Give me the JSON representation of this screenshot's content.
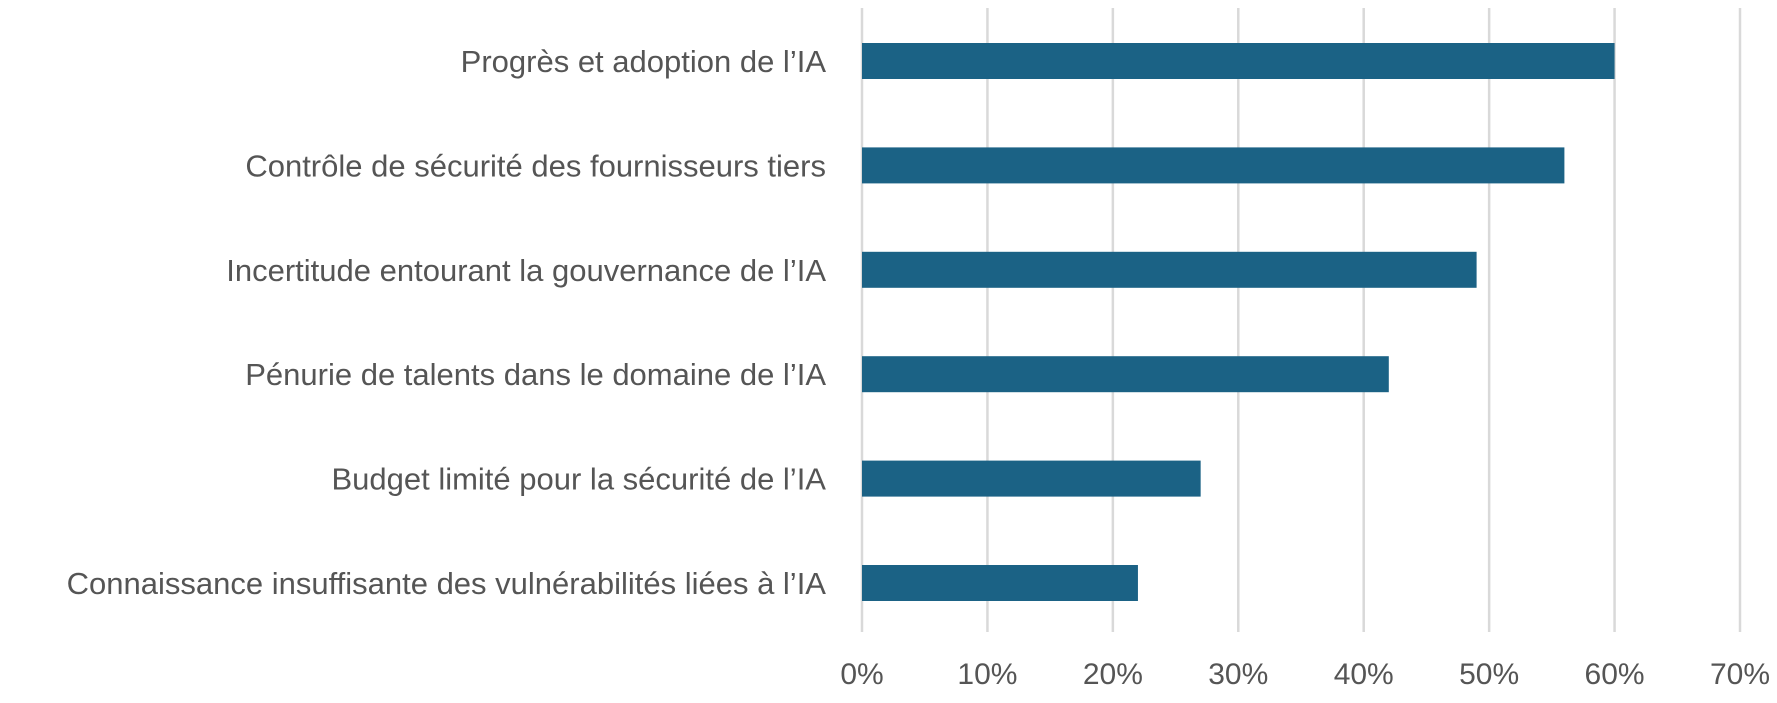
{
  "chart_data": {
    "type": "bar",
    "orientation": "horizontal",
    "categories": [
      "Progrès et adoption de l’IA",
      "Contrôle de sécurité des fournisseurs tiers",
      "Incertitude entourant la gouvernance de l’IA",
      "Pénurie de talents dans le domaine de l’IA",
      "Budget limité pour la sécurité de l’IA",
      "Connaissance insuffisante des vulnérabilités liées à l’IA"
    ],
    "values": [
      60,
      56,
      49,
      42,
      27,
      22
    ],
    "unit": "%",
    "xlim": [
      0,
      70
    ],
    "xticks": [
      0,
      10,
      20,
      30,
      40,
      50,
      60,
      70
    ],
    "xtick_labels": [
      "0%",
      "10%",
      "20%",
      "30%",
      "40%",
      "50%",
      "60%",
      "70%"
    ],
    "grid": "vertical",
    "bar_color": "#1b6285",
    "title": "",
    "xlabel": "",
    "ylabel": ""
  }
}
